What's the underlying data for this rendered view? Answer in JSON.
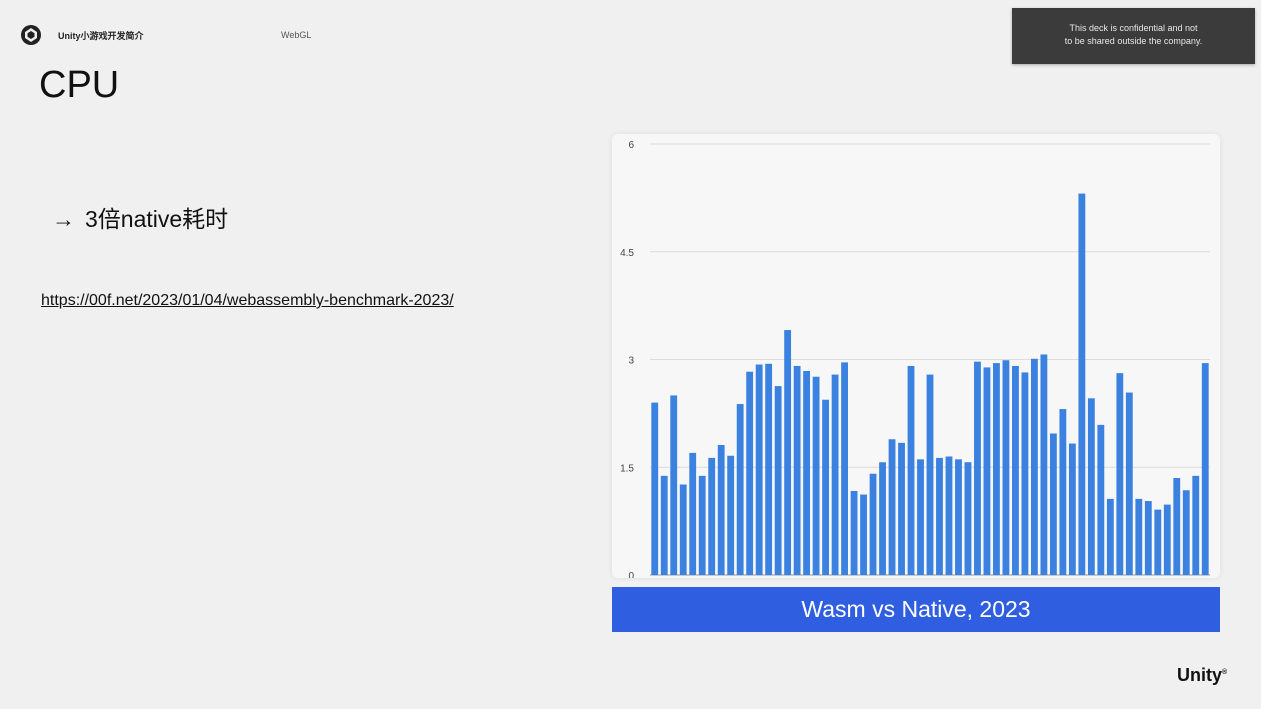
{
  "header": {
    "title": "Unity小游戏开发简介",
    "subtitle": "WebGL"
  },
  "notice": {
    "line1": "This deck is confidential and not",
    "line2": "to be shared outside the company."
  },
  "slide": {
    "title": "CPU",
    "bullet_arrow": "→",
    "bullet_text": "3倍native耗时",
    "link_text": "https://00f.net/2023/01/04/webassembly-benchmark-2023/"
  },
  "caption": "Wasm vs Native, 2023",
  "brand": "Unity",
  "brand_mark": "®",
  "colors": {
    "bar": "#3b82e0",
    "caption_bg": "#2f5fe0"
  },
  "chart_data": {
    "type": "bar",
    "ylim": [
      0,
      6
    ],
    "yticks": [
      0,
      1.5,
      3,
      4.5,
      6
    ],
    "ytick_labels": [
      "0",
      "1.5",
      "3",
      "4.5",
      "6"
    ],
    "grid": true,
    "values": [
      2.4,
      1.38,
      2.5,
      1.26,
      1.7,
      1.38,
      1.63,
      1.81,
      1.66,
      2.38,
      2.83,
      2.93,
      2.94,
      2.63,
      3.41,
      2.91,
      2.84,
      2.76,
      2.44,
      2.79,
      2.96,
      1.17,
      1.12,
      1.41,
      1.57,
      1.89,
      1.84,
      2.91,
      1.61,
      2.79,
      1.63,
      1.65,
      1.61,
      1.57,
      2.97,
      2.89,
      2.95,
      2.99,
      2.91,
      2.82,
      3.01,
      3.07,
      1.97,
      2.31,
      1.83,
      5.31,
      2.46,
      2.09,
      1.06,
      2.81,
      2.54,
      1.06,
      1.03,
      0.91,
      0.98,
      1.35,
      1.18,
      1.38,
      2.95
    ]
  }
}
